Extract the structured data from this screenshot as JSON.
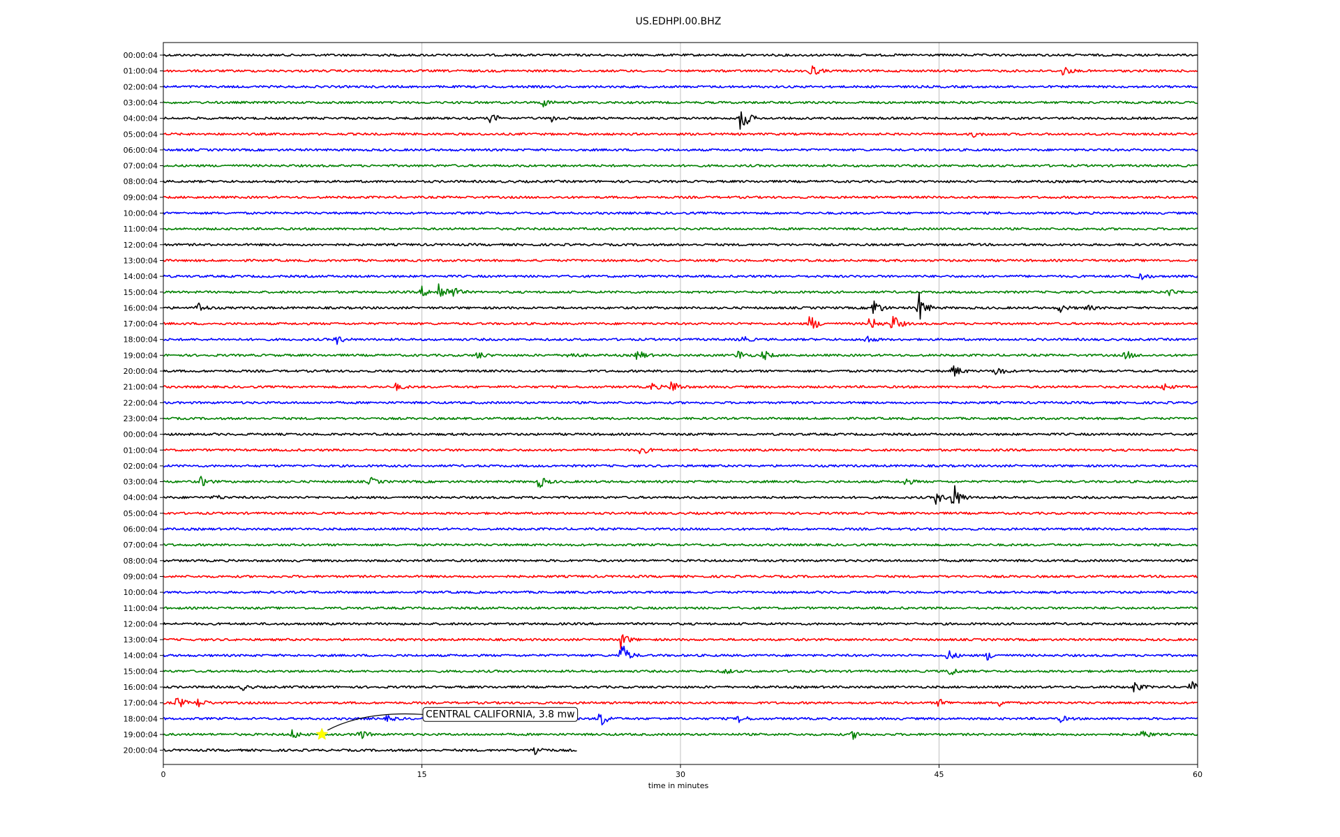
{
  "chart_data": {
    "type": "line",
    "subtype": "helicorder",
    "title": "US.EDHPI.00.BHZ",
    "xlabel": "time in minutes",
    "ylabel": "",
    "xlim": [
      0,
      60
    ],
    "x_ticks": [
      0,
      15,
      30,
      45,
      60
    ],
    "grid": "vertical",
    "trace_colors": [
      "#000000",
      "#ff0000",
      "#0000ff",
      "#008000"
    ],
    "rows": [
      "00:00:04",
      "01:00:04",
      "02:00:04",
      "03:00:04",
      "04:00:04",
      "05:00:04",
      "06:00:04",
      "07:00:04",
      "08:00:04",
      "09:00:04",
      "10:00:04",
      "11:00:04",
      "12:00:04",
      "13:00:04",
      "14:00:04",
      "15:00:04",
      "16:00:04",
      "17:00:04",
      "18:00:04",
      "19:00:04",
      "20:00:04",
      "21:00:04",
      "22:00:04",
      "23:00:04",
      "00:00:04",
      "01:00:04",
      "02:00:04",
      "03:00:04",
      "04:00:04",
      "05:00:04",
      "06:00:04",
      "07:00:04",
      "08:00:04",
      "09:00:04",
      "10:00:04",
      "11:00:04",
      "12:00:04",
      "13:00:04",
      "14:00:04",
      "15:00:04",
      "16:00:04",
      "17:00:04",
      "18:00:04",
      "19:00:04",
      "20:00:04"
    ],
    "last_row_end_minute": 24,
    "bursts": [
      {
        "row": 1,
        "minute": 37.5,
        "amp": 1.0
      },
      {
        "row": 1,
        "minute": 52.2,
        "amp": 0.6
      },
      {
        "row": 3,
        "minute": 22,
        "amp": 0.5
      },
      {
        "row": 4,
        "minute": 19,
        "amp": 0.6
      },
      {
        "row": 4,
        "minute": 22.5,
        "amp": 0.4
      },
      {
        "row": 4,
        "minute": 33.5,
        "amp": 2.0
      },
      {
        "row": 5,
        "minute": 47,
        "amp": 0.3
      },
      {
        "row": 14,
        "minute": 56.5,
        "amp": 0.8
      },
      {
        "row": 15,
        "minute": 15,
        "amp": 0.6
      },
      {
        "row": 15,
        "minute": 16,
        "amp": 1.5
      },
      {
        "row": 15,
        "minute": 16.8,
        "amp": 0.6
      },
      {
        "row": 15,
        "minute": 58.3,
        "amp": 0.5
      },
      {
        "row": 16,
        "minute": 2,
        "amp": 0.7
      },
      {
        "row": 16,
        "minute": 41.2,
        "amp": 1.2
      },
      {
        "row": 16,
        "minute": 43.8,
        "amp": 2.0
      },
      {
        "row": 16,
        "minute": 52,
        "amp": 0.5
      },
      {
        "row": 16,
        "minute": 53.5,
        "amp": 0.4
      },
      {
        "row": 17,
        "minute": 37.5,
        "amp": 1.2
      },
      {
        "row": 17,
        "minute": 41,
        "amp": 0.9
      },
      {
        "row": 17,
        "minute": 42.3,
        "amp": 1.2
      },
      {
        "row": 18,
        "minute": 10,
        "amp": 0.6
      },
      {
        "row": 18,
        "minute": 33.5,
        "amp": 0.5
      },
      {
        "row": 18,
        "minute": 40.7,
        "amp": 0.6
      },
      {
        "row": 19,
        "minute": 18.2,
        "amp": 0.5
      },
      {
        "row": 19,
        "minute": 23.5,
        "amp": 0.5
      },
      {
        "row": 19,
        "minute": 27.5,
        "amp": 0.7
      },
      {
        "row": 19,
        "minute": 33.3,
        "amp": 0.7
      },
      {
        "row": 19,
        "minute": 34.8,
        "amp": 0.6
      },
      {
        "row": 19,
        "minute": 55.8,
        "amp": 0.6
      },
      {
        "row": 20,
        "minute": 45.8,
        "amp": 0.9
      },
      {
        "row": 20,
        "minute": 48.3,
        "amp": 0.7
      },
      {
        "row": 21,
        "minute": 13.5,
        "amp": 0.4
      },
      {
        "row": 21,
        "minute": 28.3,
        "amp": 0.5
      },
      {
        "row": 21,
        "minute": 29.5,
        "amp": 0.9
      },
      {
        "row": 21,
        "minute": 58,
        "amp": 0.5
      },
      {
        "row": 25,
        "minute": 27.7,
        "amp": 0.6
      },
      {
        "row": 27,
        "minute": 2.2,
        "amp": 0.6
      },
      {
        "row": 27,
        "minute": 12,
        "amp": 0.5
      },
      {
        "row": 27,
        "minute": 21.8,
        "amp": 0.8
      },
      {
        "row": 27,
        "minute": 43,
        "amp": 0.5
      },
      {
        "row": 28,
        "minute": 3,
        "amp": 0.3
      },
      {
        "row": 28,
        "minute": 44.8,
        "amp": 0.8
      },
      {
        "row": 28,
        "minute": 45.8,
        "amp": 2.0
      },
      {
        "row": 37,
        "minute": 26.5,
        "amp": 1.2
      },
      {
        "row": 38,
        "minute": 26.5,
        "amp": 2.0
      },
      {
        "row": 38,
        "minute": 45.5,
        "amp": 0.7
      },
      {
        "row": 38,
        "minute": 47.8,
        "amp": 0.5
      },
      {
        "row": 39,
        "minute": 32.5,
        "amp": 0.4
      },
      {
        "row": 39,
        "minute": 45.6,
        "amp": 0.6
      },
      {
        "row": 40,
        "minute": 4.6,
        "amp": 0.3
      },
      {
        "row": 40,
        "minute": 56.3,
        "amp": 0.7
      },
      {
        "row": 40,
        "minute": 59.6,
        "amp": 0.7
      },
      {
        "row": 41,
        "minute": 0.8,
        "amp": 0.8
      },
      {
        "row": 41,
        "minute": 2,
        "amp": 0.6
      },
      {
        "row": 41,
        "minute": 45,
        "amp": 0.5
      },
      {
        "row": 41,
        "minute": 48.5,
        "amp": 0.4
      },
      {
        "row": 42,
        "minute": 13,
        "amp": 0.4
      },
      {
        "row": 42,
        "minute": 25.3,
        "amp": 1.2
      },
      {
        "row": 42,
        "minute": 33.4,
        "amp": 0.5
      },
      {
        "row": 42,
        "minute": 52,
        "amp": 0.4
      },
      {
        "row": 43,
        "minute": 7.5,
        "amp": 0.6
      },
      {
        "row": 43,
        "minute": 11.3,
        "amp": 0.8
      },
      {
        "row": 43,
        "minute": 40,
        "amp": 0.5
      },
      {
        "row": 43,
        "minute": 56.8,
        "amp": 0.6
      },
      {
        "row": 44,
        "minute": 21.5,
        "amp": 0.8
      }
    ],
    "annotation": {
      "text": "CENTRAL CALIFORNIA, 3.8 mw",
      "row": 43,
      "minute": 9.2,
      "marker_color": "#ffff00"
    }
  }
}
